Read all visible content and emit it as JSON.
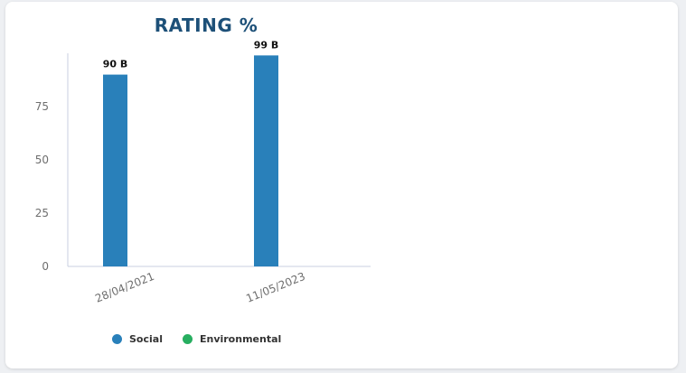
{
  "chart_data": {
    "type": "bar",
    "title": "RATING %",
    "categories": [
      "28/04/2021",
      "11/05/2023"
    ],
    "series": [
      {
        "name": "Social",
        "values": [
          90,
          99
        ],
        "labels": [
          "90 B",
          "99 B"
        ],
        "color": "#2980ba"
      },
      {
        "name": "Environmental",
        "values": [
          null,
          null
        ],
        "labels": [
          null,
          null
        ],
        "color": "#27ae60"
      }
    ],
    "y_ticks": [
      0,
      25,
      50,
      75
    ],
    "ylim": [
      0,
      100
    ],
    "xlabel": "",
    "ylabel": "",
    "grid": false,
    "legend_position": "bottom-left"
  }
}
